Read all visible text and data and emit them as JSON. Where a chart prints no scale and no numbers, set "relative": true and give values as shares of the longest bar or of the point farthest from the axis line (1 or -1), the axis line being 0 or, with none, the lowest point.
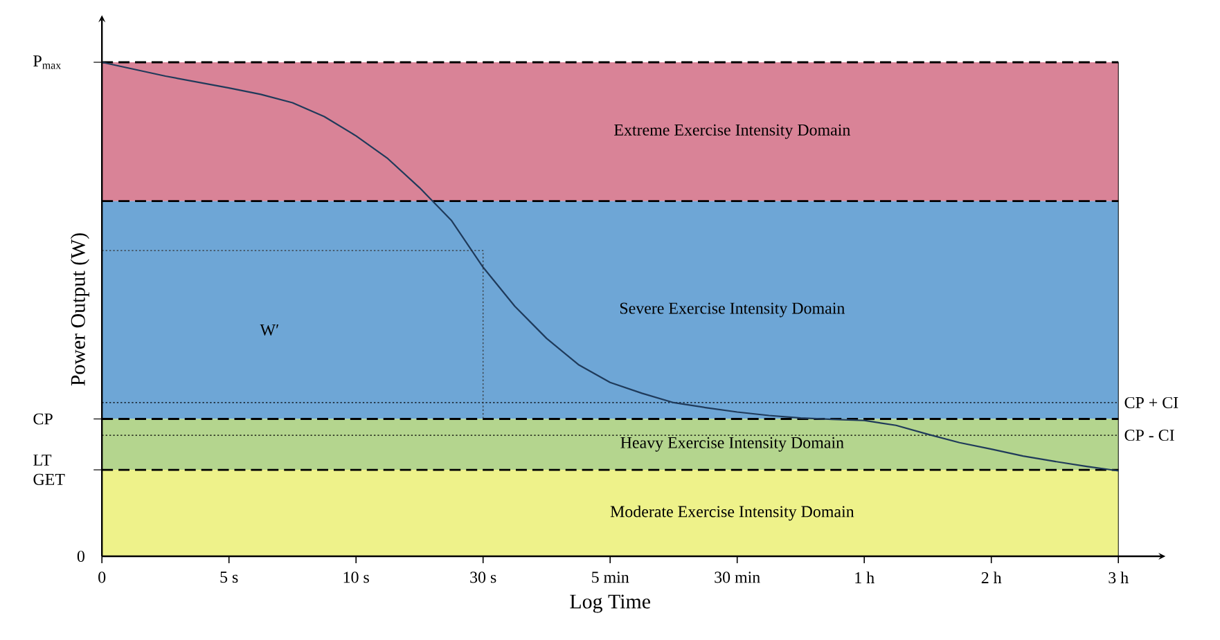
{
  "chart_data": {
    "type": "line",
    "xlabel": "Log Time",
    "ylabel": "Power Output (W)",
    "relative": true,
    "categories": [
      "0",
      null,
      null,
      null,
      "5 s",
      null,
      null,
      null,
      "10 s",
      null,
      null,
      null,
      "30 s",
      null,
      null,
      null,
      "5 min",
      null,
      null,
      null,
      "30 min",
      null,
      null,
      null,
      "1 h",
      null,
      null,
      null,
      "2 h",
      null,
      null,
      null,
      "3 h"
    ],
    "series": [
      {
        "color": "#1f3a5a",
        "line_style": "solid",
        "values": [
          1,
          0.986,
          0.972,
          0.96,
          0.948,
          0.935,
          0.918,
          0.89,
          0.851,
          0.805,
          0.746,
          0.68,
          0.585,
          0.506,
          0.441,
          0.388,
          0.352,
          0.33,
          0.311,
          0.301,
          0.292,
          0.285,
          0.28,
          0.277,
          0.275,
          0.265,
          0.247,
          0.23,
          0.217,
          0.203,
          0.192,
          0.182,
          0.173
        ]
      },
      {
        "color": "#333333",
        "type": "step",
        "line_style": "dotted",
        "values": [
          0.619,
          0.619,
          0.619,
          0.619,
          0.619,
          0.619,
          0.619,
          0.619,
          0.619,
          0.619,
          0.619,
          0.619,
          0.278,
          null,
          null,
          null,
          null,
          null,
          null,
          null,
          null,
          null,
          null,
          null,
          null,
          null,
          null,
          null,
          null,
          null,
          null,
          null,
          null
        ]
      }
    ],
    "ref_lines": [
      {
        "axis": "y",
        "value": 1,
        "label": "P$_{max}$",
        "line_style": "dashed"
      },
      {
        "axis": "y",
        "value": 0.719,
        "line_style": "dashed"
      },
      {
        "axis": "y",
        "value": 0.311,
        "label": "CP + CI",
        "line_style": "dotted"
      },
      {
        "axis": "y",
        "value": 0.278,
        "label": "CP",
        "line_style": "dashed"
      },
      {
        "axis": "y",
        "value": 0.245,
        "label": "CP - CI",
        "line_style": "dotted"
      },
      {
        "axis": "y",
        "value": 0.175,
        "label": "LT GET",
        "line_style": "dashed"
      }
    ],
    "bands": [
      {
        "axis": "y",
        "from": 0.719,
        "to": 1,
        "label": "Extreme Exercise Intensity Domain",
        "color": "#d98397"
      },
      {
        "axis": "y",
        "from": 0.278,
        "to": 0.719,
        "label": "Severe Exercise Intensity Domain",
        "color": "#6ea6d6"
      },
      {
        "axis": "y",
        "from": 0.175,
        "to": 0.278,
        "label": "Heavy Exercise Intensity Domain",
        "color": "#b4d58e"
      },
      {
        "axis": "y",
        "from": 0,
        "to": 0.175,
        "label": "Moderate Exercise Intensity Domain",
        "color": "#eef28a"
      }
    ],
    "annotations": [
      "W′",
      "0"
    ]
  }
}
